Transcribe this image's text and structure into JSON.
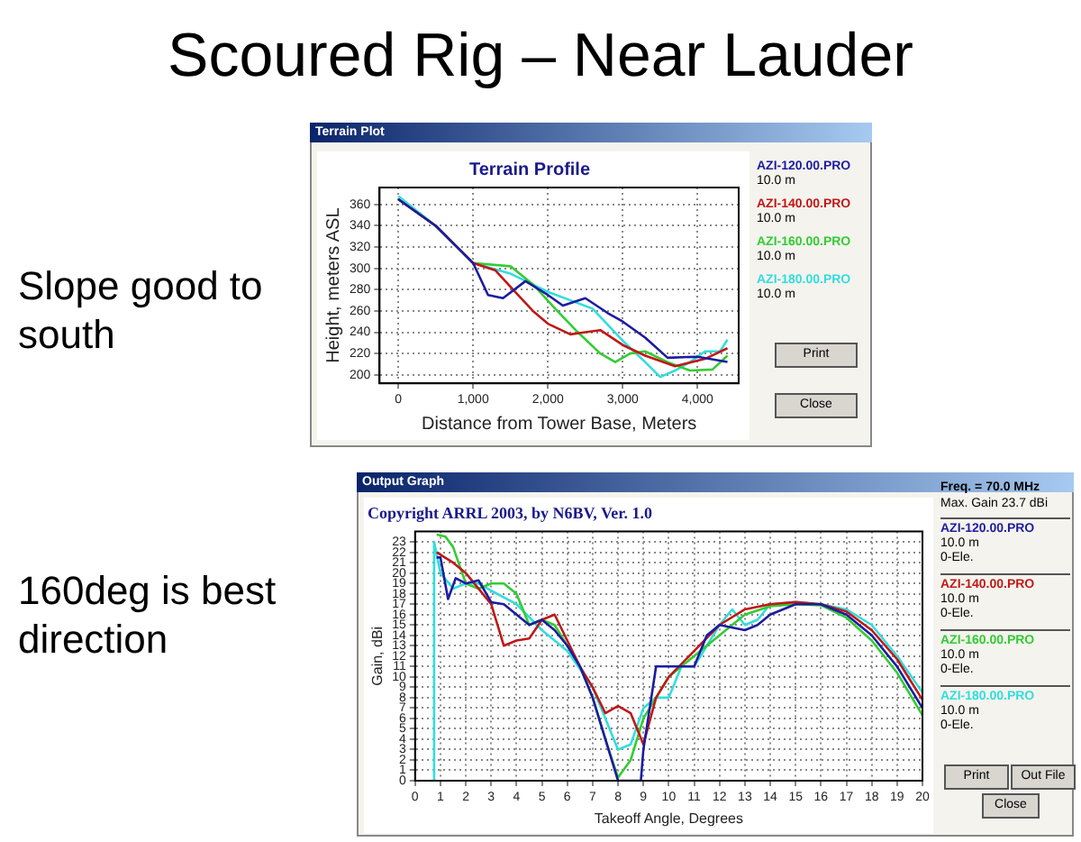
{
  "chart_data": [
    {
      "type": "line",
      "title": "Terrain Profile",
      "xlabel": "Distance from Tower Base, Meters",
      "ylabel": "Height, meters ASL",
      "annotations": [
        "Scoured Rig – Near Lauder",
        "Slope good to south",
        "Terrain Plot",
        "10.0 m",
        "10.0 m",
        "10.0 m",
        "10.0 m",
        "Print",
        "Close"
      ],
      "xlim": [
        -250,
        4550
      ],
      "ylim": [
        192,
        376
      ],
      "xticks": [
        0,
        {
          "value": 1000,
          "label": "1,000"
        },
        {
          "value": 2000,
          "label": "2,000"
        },
        {
          "value": 3000,
          "label": "3,000"
        },
        {
          "value": 4000,
          "label": "4,000"
        }
      ],
      "yticks": [
        200,
        220,
        240,
        260,
        280,
        300,
        320,
        340,
        360
      ],
      "grid": true,
      "legend": "right",
      "series": [
        {
          "name": "AZI-120.00.PRO",
          "color": "#1c1ca0",
          "x": [
            0,
            500,
            1000,
            1200,
            1400,
            1700,
            2000,
            2200,
            2500,
            2800,
            3000,
            3300,
            3600,
            4000,
            4400
          ],
          "values": [
            365,
            340,
            305,
            275,
            272,
            288,
            275,
            265,
            272,
            258,
            250,
            235,
            216,
            217,
            212
          ]
        },
        {
          "name": "AZI-140.00.PRO",
          "color": "#c01818",
          "x": [
            0,
            500,
            1000,
            1300,
            1600,
            1800,
            2000,
            2300,
            2500,
            2700,
            3000,
            3300,
            3700,
            4100,
            4400
          ],
          "values": [
            365,
            340,
            305,
            298,
            275,
            260,
            248,
            238,
            240,
            242,
            228,
            218,
            208,
            215,
            225
          ]
        },
        {
          "name": "AZI-160.00.PRO",
          "color": "#33cc33",
          "x": [
            0,
            500,
            1000,
            1500,
            1800,
            2100,
            2400,
            2700,
            2900,
            3100,
            3300,
            3600,
            3900,
            4200,
            4400
          ],
          "values": [
            365,
            340,
            305,
            302,
            285,
            262,
            240,
            220,
            212,
            220,
            222,
            212,
            204,
            205,
            218
          ]
        },
        {
          "name": "AZI-180.00.PRO",
          "color": "#33dddd",
          "x": [
            0,
            500,
            1000,
            1500,
            2000,
            2300,
            2600,
            3000,
            3300,
            3500,
            3700,
            3900,
            4100,
            4300,
            4400
          ],
          "values": [
            368,
            340,
            305,
            295,
            278,
            270,
            262,
            232,
            212,
            198,
            204,
            212,
            222,
            222,
            233
          ]
        }
      ]
    },
    {
      "type": "line",
      "title": "Copyright ARRL 2003, by N6BV, Ver. 1.0",
      "xlabel": "Takeoff Angle, Degrees",
      "ylabel": "Gain, dBi",
      "annotations": [
        "160deg is best direction",
        "Output Graph",
        "Freq. = 70.0 MHz",
        "Max. Gain 23.7 dBi",
        "10.0 m",
        "0-Ele.",
        "10.0 m",
        "0-Ele.",
        "10.0 m",
        "0-Ele.",
        "10.0 m",
        "0-Ele.",
        "Print",
        "Out File",
        "Close"
      ],
      "xlim": [
        0,
        20
      ],
      "ylim": [
        0,
        24
      ],
      "xticks": [
        0,
        1,
        2,
        3,
        4,
        5,
        6,
        7,
        8,
        9,
        10,
        11,
        12,
        13,
        14,
        15,
        16,
        17,
        18,
        19,
        20
      ],
      "yticks": [
        0,
        1,
        2,
        3,
        4,
        5,
        6,
        7,
        8,
        9,
        10,
        11,
        12,
        13,
        14,
        15,
        16,
        17,
        18,
        19,
        20,
        21,
        22,
        23
      ],
      "grid": true,
      "legend": "right",
      "series": [
        {
          "name": "AZI-120.00.PRO",
          "color": "#1c1ca0",
          "x": [
            0.85,
            1,
            1.3,
            1.6,
            2,
            2.5,
            3,
            3.5,
            4,
            4.5,
            5,
            5.5,
            6,
            6.5,
            7,
            7.5,
            8,
            8.2,
            8.9,
            9,
            9.5,
            10,
            10.5,
            11,
            11.5,
            12,
            13,
            13.5,
            14,
            15,
            16,
            17,
            18,
            19,
            20
          ],
          "values": [
            21.5,
            21.5,
            17.5,
            19.5,
            19,
            19.3,
            17.2,
            17,
            16,
            15,
            15.5,
            14.5,
            13,
            11,
            8,
            4,
            0,
            0,
            0,
            3,
            11,
            11,
            11,
            11,
            14,
            15,
            14.5,
            15,
            16,
            17,
            17,
            16,
            14,
            11,
            7
          ]
        },
        {
          "name": "AZI-140.00.PRO",
          "color": "#c01818",
          "x": [
            0.85,
            1.5,
            2,
            2.5,
            3,
            3.5,
            4,
            4.5,
            5,
            5.5,
            6,
            6.5,
            7,
            7.5,
            8,
            8.5,
            9,
            9.5,
            10,
            11,
            12,
            13,
            14,
            15,
            16,
            17,
            18,
            19,
            20
          ],
          "values": [
            22,
            21,
            20,
            18.5,
            17,
            13,
            13.5,
            13.7,
            15.5,
            16,
            13.5,
            11,
            9,
            6.5,
            7.2,
            6.5,
            3.5,
            8,
            10,
            12.5,
            15,
            16.5,
            17,
            17.2,
            17,
            16.3,
            14.5,
            11.7,
            7.8
          ]
        },
        {
          "name": "AZI-160.00.PRO",
          "color": "#33cc33",
          "x": [
            0.85,
            1.2,
            1.5,
            2,
            2.5,
            3,
            3.5,
            4,
            4.5,
            5,
            5.5,
            6,
            6.5,
            7,
            7.5,
            8,
            8.5,
            9,
            9.5,
            10,
            11,
            12,
            13,
            14,
            15,
            16,
            17,
            18,
            19,
            20
          ],
          "values": [
            23.7,
            23.5,
            22.5,
            19,
            18.5,
            19,
            19,
            18,
            15,
            15.5,
            15,
            13,
            11,
            8,
            4,
            0.3,
            2,
            6,
            8,
            10,
            12,
            14,
            16,
            16.8,
            17,
            16.9,
            15.7,
            13.5,
            10.4,
            6.3
          ]
        },
        {
          "name": "AZI-180.00.PRO",
          "color": "#33dddd",
          "x": [
            0.7,
            0.75,
            1,
            1.5,
            2,
            2.5,
            3,
            4,
            5,
            6,
            7,
            7.5,
            8,
            8.5,
            9,
            9.5,
            10,
            10.5,
            11,
            12,
            12.5,
            13,
            13.5,
            14,
            15,
            16,
            17,
            18,
            19,
            20
          ],
          "values": [
            0,
            23,
            20,
            18.5,
            19,
            19,
            18.3,
            17,
            14.5,
            12.5,
            9,
            6,
            3,
            3.5,
            7,
            8,
            8,
            11,
            11,
            15,
            16.5,
            15,
            15.5,
            17,
            17.2,
            17,
            16.5,
            15,
            12,
            8.5
          ]
        }
      ]
    }
  ]
}
